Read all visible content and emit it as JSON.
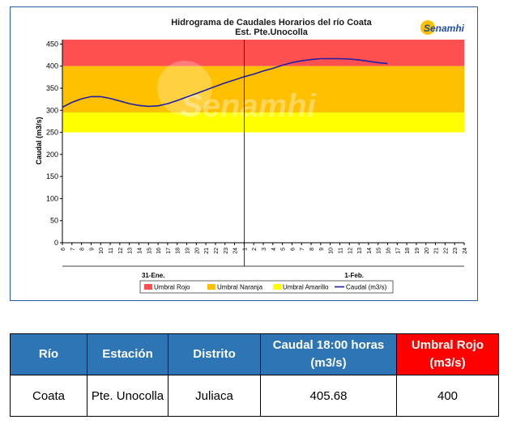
{
  "chart_data": {
    "type": "line",
    "title": "Hidrograma de Caudales Horarios del río Coata",
    "subtitle": "Est. Pte.Unocolla",
    "ylabel": "Caudal  (m3/s)",
    "ylim": [
      0,
      460
    ],
    "yticks": [
      0,
      50,
      100,
      150,
      200,
      250,
      300,
      350,
      400,
      450
    ],
    "xtick_labels": [
      "6",
      "7",
      "8",
      "9",
      "10",
      "11",
      "12",
      "13",
      "14",
      "15",
      "16",
      "17",
      "18",
      "19",
      "20",
      "21",
      "22",
      "23",
      "24",
      "1",
      "2",
      "3",
      "4",
      "5",
      "6",
      "7",
      "8",
      "9",
      "10",
      "11",
      "12",
      "13",
      "14",
      "15",
      "16",
      "17",
      "18",
      "19",
      "20",
      "21",
      "22",
      "23",
      "24"
    ],
    "date_labels": [
      "31-Ene.",
      "1-Feb."
    ],
    "thresholds": [
      {
        "name": "Umbral Rojo",
        "from": 400,
        "to": 460,
        "color": "#ff5050"
      },
      {
        "name": "Umbral Naranja",
        "from": 295,
        "to": 400,
        "color": "#ffc000"
      },
      {
        "name": "Umbral Amarillo",
        "from": 250,
        "to": 295,
        "color": "#ffff00"
      }
    ],
    "series": [
      {
        "name": "Caudal (m3/s)",
        "color": "#1f1fa8",
        "values": [
          307,
          318,
          326,
          331,
          331,
          327,
          321,
          315,
          311,
          309,
          310,
          315,
          322,
          330,
          338,
          346,
          354,
          362,
          369,
          376,
          382,
          389,
          395,
          402,
          408,
          412,
          415,
          417,
          417,
          417,
          416,
          414,
          411,
          408,
          405.68
        ]
      }
    ],
    "legend": [
      "Umbral Rojo",
      "Umbral Naranja",
      "Umbral Amarillo",
      "Caudal (m3/s)"
    ],
    "legend_position": "bottom",
    "grid": false
  },
  "logo": {
    "text": "Senamhi",
    "watermark": "Senamhi"
  },
  "table": {
    "headers": [
      "Río",
      "Estación",
      "Distrito",
      "Caudal 18:00 horas (m3/s)",
      "Umbral Rojo (m3/s)"
    ],
    "row": [
      "Coata",
      "Pte. Unocolla",
      "Juliaca",
      "405.68",
      "400"
    ]
  },
  "colors": {
    "header_blue": "#2e75b6",
    "header_red": "#ff0000",
    "line": "#1f1fa8"
  }
}
